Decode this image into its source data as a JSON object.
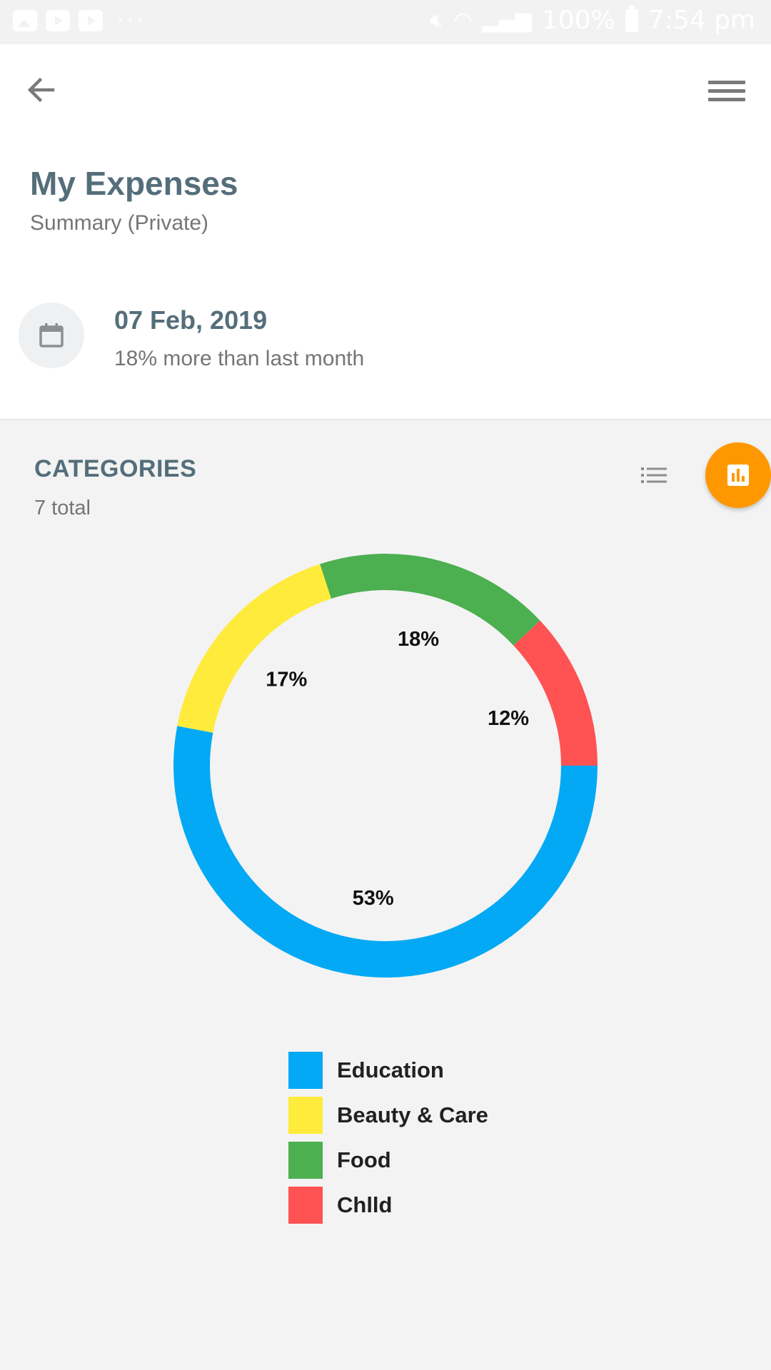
{
  "status_bar": {
    "battery": "100%",
    "time": "7:54 pm"
  },
  "header": {
    "title": "My Expenses",
    "subtitle": "Summary (Private)",
    "date": "07 Feb, 2019",
    "comparison": "18% more than last month"
  },
  "categories": {
    "title": "CATEGORIES",
    "count_label": "7 total"
  },
  "icons": {
    "back": "arrow-back-icon",
    "menu": "hamburger-menu-icon",
    "calendar": "calendar-icon",
    "list_view": "list-icon",
    "chart_view": "bar-chart-icon"
  },
  "chart_data": {
    "type": "pie",
    "donut": true,
    "categories": [
      "Education",
      "Beauty & Care",
      "Food",
      "Chlld"
    ],
    "values": [
      53,
      17,
      18,
      12
    ],
    "value_labels": [
      "53%",
      "17%",
      "18%",
      "12%"
    ],
    "colors": [
      "#03a9f4",
      "#ffeb3b",
      "#4caf50",
      "#ff5252"
    ],
    "legend_position": "bottom"
  },
  "colors": {
    "accent": "#ff9800",
    "title": "#546e7a"
  }
}
